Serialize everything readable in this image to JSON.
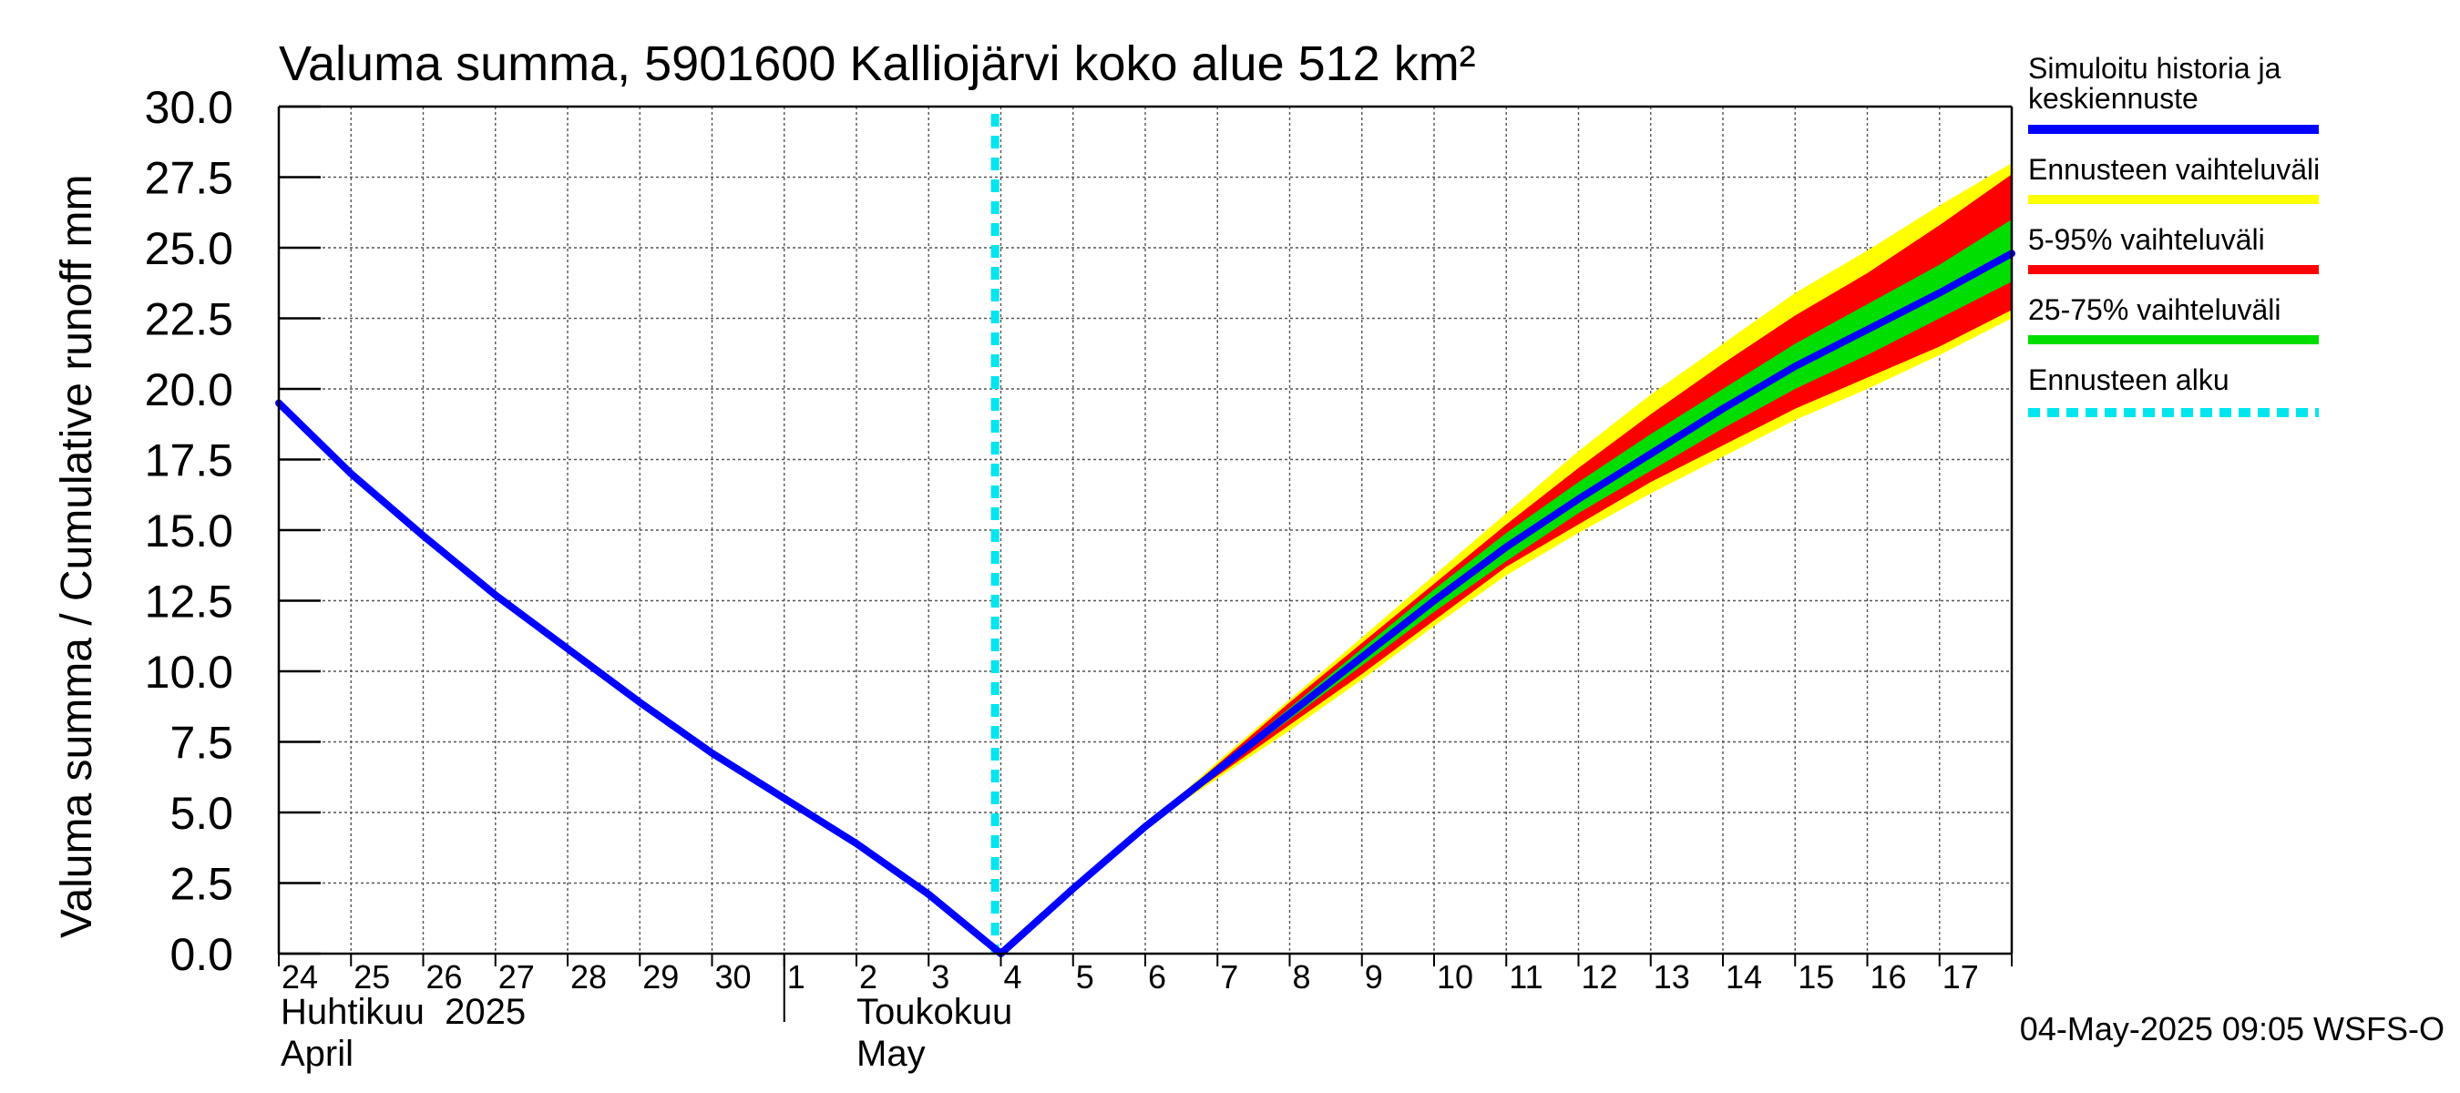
{
  "chart_data": {
    "type": "area",
    "title": "Valuma summa, 5901600 Kalliojärvi koko alue 512 km²",
    "ylabel": "Valuma summa / Cumulative runoff    mm",
    "ylim": [
      0,
      30
    ],
    "y_ticks": [
      "0.0",
      "2.5",
      "5.0",
      "7.5",
      "10.0",
      "12.5",
      "15.0",
      "17.5",
      "20.0",
      "22.5",
      "25.0",
      "27.5",
      "30.0"
    ],
    "x_tick_labels": [
      "24",
      "25",
      "26",
      "27",
      "28",
      "29",
      "30",
      "1",
      "2",
      "3",
      "4",
      "5",
      "6",
      "7",
      "8",
      "9",
      "10",
      "11",
      "12",
      "13",
      "14",
      "15",
      "16",
      "17"
    ],
    "month_labels": [
      {
        "fi": "Huhtikuu  2025",
        "en": "April"
      },
      {
        "fi": "Toukokuu",
        "en": "May"
      }
    ],
    "x_range": [
      "2025-04-24",
      "2025-05-18"
    ],
    "grid": true,
    "forecast_start": "2025-05-04",
    "series": [
      {
        "name": "Simuloitu historia ja keskiennuste",
        "color": "#0000ff",
        "points": [
          [
            "2025-04-24",
            19.5
          ],
          [
            "2025-04-25",
            17.0
          ],
          [
            "2025-04-26",
            14.8
          ],
          [
            "2025-04-27",
            12.7
          ],
          [
            "2025-04-28",
            10.8
          ],
          [
            "2025-04-29",
            8.9
          ],
          [
            "2025-04-30",
            7.1
          ],
          [
            "2025-05-01",
            5.5
          ],
          [
            "2025-05-02",
            3.9
          ],
          [
            "2025-05-03",
            2.1
          ],
          [
            "2025-05-04",
            0.0
          ],
          [
            "2025-05-05",
            2.3
          ],
          [
            "2025-05-06",
            4.5
          ],
          [
            "2025-05-07",
            6.5
          ],
          [
            "2025-05-08",
            8.5
          ],
          [
            "2025-05-09",
            10.5
          ],
          [
            "2025-05-10",
            12.5
          ],
          [
            "2025-05-11",
            14.4
          ],
          [
            "2025-05-12",
            16.1
          ],
          [
            "2025-05-13",
            17.7
          ],
          [
            "2025-05-14",
            19.3
          ],
          [
            "2025-05-15",
            20.8
          ],
          [
            "2025-05-16",
            22.1
          ],
          [
            "2025-05-17",
            23.4
          ],
          [
            "2025-05-18",
            24.8
          ]
        ]
      }
    ],
    "bands": [
      {
        "name": "Ennusteen vaihteluväli",
        "color": "#ffff00",
        "points": [
          [
            "2025-05-06",
            4.5,
            4.5
          ],
          [
            "2025-05-07",
            6.2,
            6.8
          ],
          [
            "2025-05-08",
            7.9,
            9.0
          ],
          [
            "2025-05-09",
            9.7,
            11.2
          ],
          [
            "2025-05-10",
            11.6,
            13.4
          ],
          [
            "2025-05-11",
            13.4,
            15.6
          ],
          [
            "2025-05-12",
            14.9,
            17.8
          ],
          [
            "2025-05-13",
            16.3,
            19.8
          ],
          [
            "2025-05-14",
            17.6,
            21.6
          ],
          [
            "2025-05-15",
            18.9,
            23.4
          ],
          [
            "2025-05-16",
            20.0,
            24.9
          ],
          [
            "2025-05-17",
            21.2,
            26.5
          ],
          [
            "2025-05-18",
            22.5,
            28.0
          ]
        ]
      },
      {
        "name": "5-95% vaihteluväli",
        "color": "#ff0000",
        "points": [
          [
            "2025-05-06",
            4.5,
            4.5
          ],
          [
            "2025-05-07",
            6.3,
            6.7
          ],
          [
            "2025-05-08",
            8.1,
            8.9
          ],
          [
            "2025-05-09",
            9.9,
            11.0
          ],
          [
            "2025-05-10",
            11.8,
            13.1
          ],
          [
            "2025-05-11",
            13.7,
            15.2
          ],
          [
            "2025-05-12",
            15.2,
            17.2
          ],
          [
            "2025-05-13",
            16.7,
            19.1
          ],
          [
            "2025-05-14",
            18.0,
            20.9
          ],
          [
            "2025-05-15",
            19.3,
            22.6
          ],
          [
            "2025-05-16",
            20.4,
            24.1
          ],
          [
            "2025-05-17",
            21.5,
            25.8
          ],
          [
            "2025-05-18",
            22.8,
            27.6
          ]
        ]
      },
      {
        "name": "25-75% vaihteluväli",
        "color": "#00dd00",
        "points": [
          [
            "2025-05-06",
            4.5,
            4.5
          ],
          [
            "2025-05-07",
            6.4,
            6.6
          ],
          [
            "2025-05-08",
            8.3,
            8.7
          ],
          [
            "2025-05-09",
            10.2,
            10.8
          ],
          [
            "2025-05-10",
            12.1,
            12.9
          ],
          [
            "2025-05-11",
            13.9,
            14.9
          ],
          [
            "2025-05-12",
            15.6,
            16.7
          ],
          [
            "2025-05-13",
            17.1,
            18.4
          ],
          [
            "2025-05-14",
            18.6,
            20.0
          ],
          [
            "2025-05-15",
            20.0,
            21.6
          ],
          [
            "2025-05-16",
            21.2,
            23.0
          ],
          [
            "2025-05-17",
            22.5,
            24.4
          ],
          [
            "2025-05-18",
            23.8,
            26.0
          ]
        ]
      }
    ],
    "legend": [
      {
        "label": "Simuloitu historia ja keskiennuste",
        "color": "#0000ff",
        "style": "solid"
      },
      {
        "label": "Ennusteen vaihteluväli",
        "color": "#ffff00",
        "style": "solid"
      },
      {
        "label": "5-95% vaihteluväli",
        "color": "#ff0000",
        "style": "solid"
      },
      {
        "label": "25-75% vaihteluväli",
        "color": "#00dd00",
        "style": "solid"
      },
      {
        "label": "Ennusteen alku",
        "color": "#00e5ee",
        "style": "dashed"
      }
    ],
    "legend_position": "right",
    "footer": "04-May-2025 09:05 WSFS-O"
  }
}
